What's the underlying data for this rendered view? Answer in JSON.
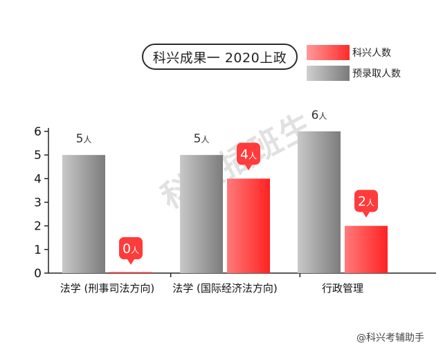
{
  "title": "科兴成果一 2020上政",
  "legend": [
    {
      "label": "科兴人数",
      "color": "#ff3b3b"
    },
    {
      "label": "预录取人数",
      "color": "#9a9a9a"
    }
  ],
  "watermark": "@科兴考辅助手",
  "logo_text": "科兴插班生",
  "value_unit": "人",
  "colors": {
    "red": "#ff3b3b",
    "gray": "#9a9a9a",
    "axis": "#222222"
  },
  "chart_data": {
    "type": "bar",
    "categories": [
      "法学 (刑事司法方向)",
      "法学 (国际经济法方向)",
      "行政管理"
    ],
    "series": [
      {
        "name": "预录取人数",
        "values": [
          5,
          5,
          6
        ]
      },
      {
        "name": "科兴人数",
        "values": [
          0,
          4,
          2
        ]
      }
    ],
    "ylim": [
      0,
      6
    ],
    "yticks": [
      0,
      1,
      2,
      3,
      4,
      5,
      6
    ],
    "grid": false
  }
}
